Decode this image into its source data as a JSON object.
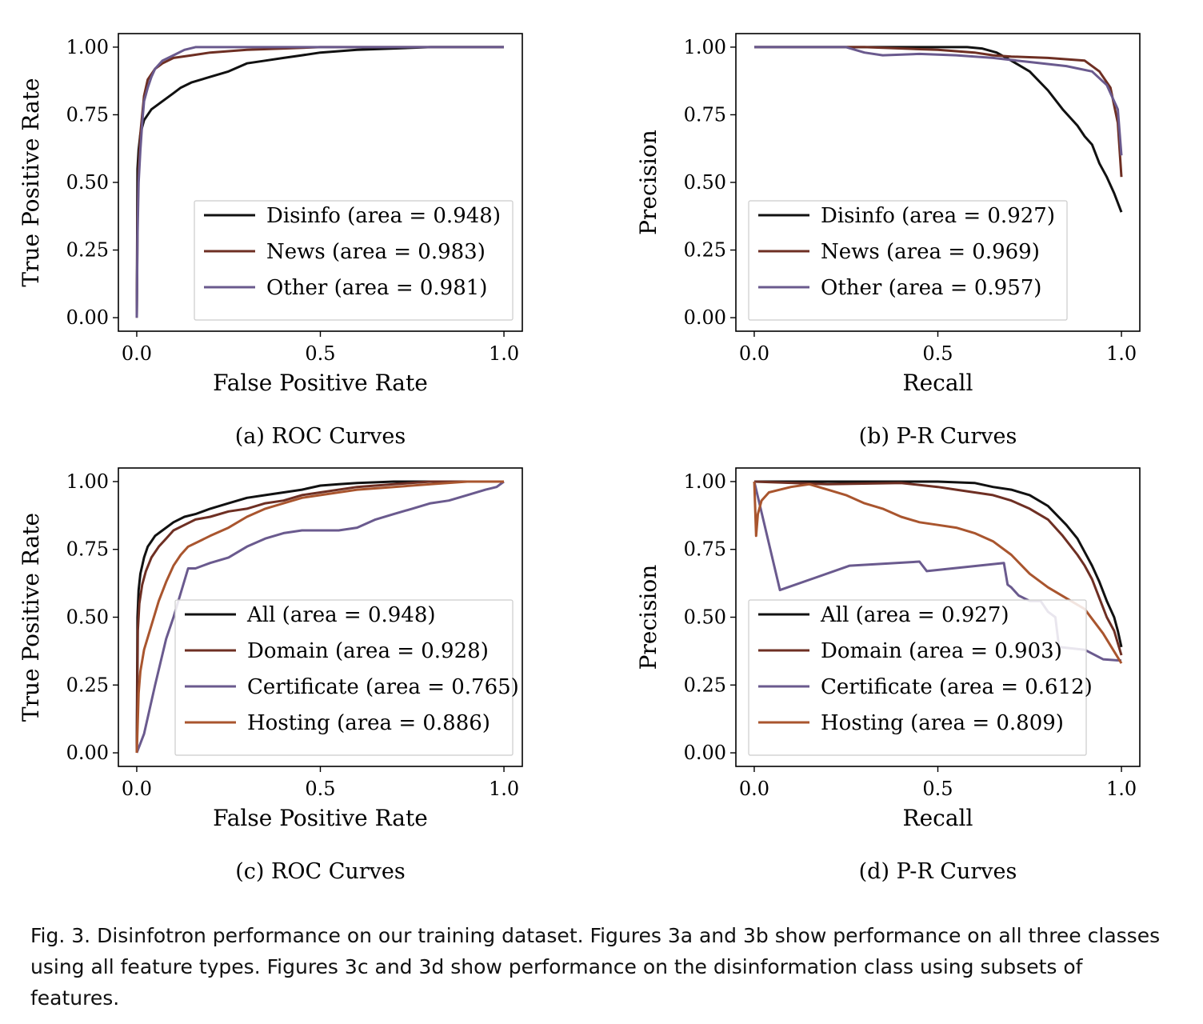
{
  "colors": {
    "black": "#111111",
    "brown": "#6e2f23",
    "purple": "#6a5a8e",
    "orange": "#a9552e"
  },
  "caption": "Fig. 3.  Disinfotron performance on our training dataset. Figures 3a and 3b show performance on all three classes using all feature types. Figures 3c and 3d show performance on the disinformation class using subsets of features.",
  "chart_data": [
    {
      "id": "a",
      "type": "line",
      "subcaption": "(a) ROC Curves",
      "xlabel": "False Positive Rate",
      "ylabel": "True Positive Rate",
      "xlim": [
        -0.05,
        1.05
      ],
      "ylim": [
        -0.05,
        1.05
      ],
      "xticks": [
        "0.0",
        "0.5",
        "1.0"
      ],
      "yticks": [
        "0.00",
        "0.25",
        "0.50",
        "0.75",
        "1.00"
      ],
      "legend_position": "lower-right",
      "series": [
        {
          "name": "Disinfo (area = 0.948)",
          "color": "black",
          "x": [
            0,
            0.002,
            0.005,
            0.01,
            0.02,
            0.04,
            0.06,
            0.08,
            0.1,
            0.12,
            0.15,
            0.2,
            0.25,
            0.3,
            0.35,
            0.4,
            0.45,
            0.5,
            0.55,
            0.6,
            0.7,
            0.8,
            1.0
          ],
          "y": [
            0,
            0.55,
            0.62,
            0.68,
            0.73,
            0.77,
            0.79,
            0.81,
            0.83,
            0.85,
            0.87,
            0.89,
            0.91,
            0.94,
            0.95,
            0.96,
            0.97,
            0.98,
            0.985,
            0.99,
            0.995,
            1.0,
            1.0
          ]
        },
        {
          "name": "News (area = 0.983)",
          "color": "brown",
          "x": [
            0,
            0.002,
            0.005,
            0.01,
            0.015,
            0.02,
            0.03,
            0.05,
            0.07,
            0.1,
            0.15,
            0.2,
            0.3,
            0.4,
            0.5,
            1.0
          ],
          "y": [
            0,
            0.35,
            0.55,
            0.68,
            0.75,
            0.82,
            0.88,
            0.92,
            0.94,
            0.96,
            0.97,
            0.98,
            0.99,
            0.995,
            1.0,
            1.0
          ]
        },
        {
          "name": "Other (area = 0.981)",
          "color": "purple",
          "x": [
            0,
            0.002,
            0.005,
            0.01,
            0.015,
            0.02,
            0.03,
            0.04,
            0.05,
            0.07,
            0.1,
            0.13,
            0.16,
            0.2,
            0.3,
            1.0
          ],
          "y": [
            0,
            0.3,
            0.5,
            0.62,
            0.72,
            0.8,
            0.85,
            0.89,
            0.92,
            0.95,
            0.97,
            0.99,
            1.0,
            1.0,
            1.0,
            1.0
          ]
        }
      ]
    },
    {
      "id": "b",
      "type": "line",
      "subcaption": "(b) P-R Curves",
      "xlabel": "Recall",
      "ylabel": "Precision",
      "xlim": [
        -0.05,
        1.05
      ],
      "ylim": [
        -0.05,
        1.05
      ],
      "xticks": [
        "0.0",
        "0.5",
        "1.0"
      ],
      "yticks": [
        "0.00",
        "0.25",
        "0.50",
        "0.75",
        "1.00"
      ],
      "legend_position": "lower-left",
      "series": [
        {
          "name": "Disinfo (area = 0.927)",
          "color": "black",
          "x": [
            0,
            0.3,
            0.5,
            0.58,
            0.62,
            0.66,
            0.7,
            0.75,
            0.8,
            0.84,
            0.88,
            0.9,
            0.92,
            0.94,
            0.96,
            0.98,
            1.0
          ],
          "y": [
            1.0,
            1.0,
            1.0,
            1.0,
            0.995,
            0.98,
            0.95,
            0.91,
            0.84,
            0.77,
            0.71,
            0.67,
            0.64,
            0.57,
            0.52,
            0.46,
            0.39
          ]
        },
        {
          "name": "News (area = 0.969)",
          "color": "brown",
          "x": [
            0,
            0.3,
            0.5,
            0.6,
            0.65,
            0.7,
            0.8,
            0.9,
            0.94,
            0.97,
            0.99,
            1.0
          ],
          "y": [
            1.0,
            1.0,
            0.99,
            0.98,
            0.97,
            0.965,
            0.96,
            0.95,
            0.91,
            0.85,
            0.72,
            0.52
          ]
        },
        {
          "name": "Other (area = 0.957)",
          "color": "purple",
          "x": [
            0,
            0.25,
            0.3,
            0.35,
            0.45,
            0.55,
            0.65,
            0.75,
            0.85,
            0.92,
            0.96,
            0.99,
            1.0
          ],
          "y": [
            1.0,
            1.0,
            0.98,
            0.97,
            0.975,
            0.97,
            0.96,
            0.945,
            0.93,
            0.91,
            0.86,
            0.77,
            0.6
          ]
        }
      ]
    },
    {
      "id": "c",
      "type": "line",
      "subcaption": "(c) ROC Curves",
      "xlabel": "False Positive Rate",
      "ylabel": "True Positive Rate",
      "xlim": [
        -0.05,
        1.05
      ],
      "ylim": [
        -0.05,
        1.05
      ],
      "xticks": [
        "0.0",
        "0.5",
        "1.0"
      ],
      "yticks": [
        "0.00",
        "0.25",
        "0.50",
        "0.75",
        "1.00"
      ],
      "legend_position": "lower-right",
      "series": [
        {
          "name": "All (area = 0.948)",
          "color": "black",
          "x": [
            0,
            0.002,
            0.005,
            0.01,
            0.02,
            0.03,
            0.04,
            0.05,
            0.07,
            0.1,
            0.13,
            0.16,
            0.2,
            0.25,
            0.3,
            0.35,
            0.4,
            0.45,
            0.5,
            0.55,
            0.6,
            0.7,
            0.8,
            1.0
          ],
          "y": [
            0,
            0.5,
            0.6,
            0.66,
            0.72,
            0.76,
            0.78,
            0.8,
            0.82,
            0.85,
            0.87,
            0.88,
            0.9,
            0.92,
            0.94,
            0.95,
            0.96,
            0.97,
            0.985,
            0.99,
            0.995,
            1.0,
            1.0,
            1.0
          ]
        },
        {
          "name": "Domain (area = 0.928)",
          "color": "brown",
          "x": [
            0,
            0.003,
            0.007,
            0.015,
            0.025,
            0.04,
            0.06,
            0.08,
            0.1,
            0.13,
            0.16,
            0.2,
            0.25,
            0.3,
            0.35,
            0.4,
            0.45,
            0.5,
            0.6,
            0.7,
            0.8,
            1.0
          ],
          "y": [
            0,
            0.45,
            0.55,
            0.62,
            0.67,
            0.72,
            0.76,
            0.79,
            0.82,
            0.84,
            0.86,
            0.87,
            0.89,
            0.9,
            0.92,
            0.93,
            0.95,
            0.96,
            0.98,
            0.99,
            1.0,
            1.0
          ]
        },
        {
          "name": "Certificate (area = 0.765)",
          "color": "purple",
          "x": [
            0,
            0.02,
            0.05,
            0.08,
            0.1,
            0.14,
            0.16,
            0.2,
            0.25,
            0.3,
            0.35,
            0.4,
            0.45,
            0.5,
            0.55,
            0.6,
            0.65,
            0.7,
            0.75,
            0.8,
            0.85,
            0.9,
            0.95,
            0.98,
            1.0
          ],
          "y": [
            0,
            0.07,
            0.25,
            0.42,
            0.5,
            0.68,
            0.68,
            0.7,
            0.72,
            0.76,
            0.79,
            0.81,
            0.82,
            0.82,
            0.82,
            0.83,
            0.86,
            0.88,
            0.9,
            0.92,
            0.93,
            0.95,
            0.97,
            0.98,
            1.0
          ]
        },
        {
          "name": "Hosting (area = 0.886)",
          "color": "orange",
          "x": [
            0,
            0.005,
            0.01,
            0.02,
            0.04,
            0.06,
            0.08,
            0.1,
            0.12,
            0.14,
            0.17,
            0.2,
            0.25,
            0.3,
            0.35,
            0.4,
            0.45,
            0.5,
            0.6,
            0.7,
            0.8,
            0.9,
            1.0
          ],
          "y": [
            0,
            0.22,
            0.3,
            0.38,
            0.47,
            0.56,
            0.63,
            0.69,
            0.73,
            0.76,
            0.78,
            0.8,
            0.83,
            0.87,
            0.9,
            0.92,
            0.94,
            0.95,
            0.97,
            0.98,
            0.99,
            1.0,
            1.0
          ]
        }
      ]
    },
    {
      "id": "d",
      "type": "line",
      "subcaption": "(d) P-R Curves",
      "xlabel": "Recall",
      "ylabel": "Precision",
      "xlim": [
        -0.05,
        1.05
      ],
      "ylim": [
        -0.05,
        1.05
      ],
      "xticks": [
        "0.0",
        "0.5",
        "1.0"
      ],
      "yticks": [
        "0.00",
        "0.25",
        "0.50",
        "0.75",
        "1.00"
      ],
      "legend_position": "lower-left",
      "series": [
        {
          "name": "All (area = 0.927)",
          "color": "black",
          "x": [
            0,
            0.3,
            0.5,
            0.6,
            0.65,
            0.7,
            0.75,
            0.8,
            0.85,
            0.88,
            0.9,
            0.92,
            0.94,
            0.96,
            0.98,
            0.99,
            1.0
          ],
          "y": [
            1.0,
            1.0,
            1.0,
            0.995,
            0.98,
            0.97,
            0.95,
            0.91,
            0.84,
            0.79,
            0.74,
            0.69,
            0.63,
            0.56,
            0.5,
            0.45,
            0.39
          ]
        },
        {
          "name": "Domain (area = 0.903)",
          "color": "brown",
          "x": [
            0,
            0.2,
            0.4,
            0.5,
            0.55,
            0.6,
            0.65,
            0.7,
            0.75,
            0.8,
            0.84,
            0.88,
            0.9,
            0.92,
            0.94,
            0.96,
            0.98,
            1.0
          ],
          "y": [
            1.0,
            0.99,
            0.995,
            0.98,
            0.97,
            0.96,
            0.95,
            0.93,
            0.9,
            0.86,
            0.8,
            0.73,
            0.69,
            0.64,
            0.57,
            0.5,
            0.45,
            0.36
          ]
        },
        {
          "name": "Certificate (area = 0.612)",
          "color": "purple",
          "x": [
            0,
            0.07,
            0.26,
            0.45,
            0.47,
            0.68,
            0.69,
            0.7,
            0.72,
            0.75,
            0.78,
            0.8,
            0.82,
            0.83,
            0.9,
            0.95,
            1.0
          ],
          "y": [
            1.0,
            0.6,
            0.69,
            0.705,
            0.67,
            0.7,
            0.62,
            0.61,
            0.58,
            0.56,
            0.56,
            0.52,
            0.5,
            0.39,
            0.38,
            0.345,
            0.34
          ]
        },
        {
          "name": "Hosting (area = 0.809)",
          "color": "orange",
          "x": [
            0,
            0.005,
            0.01,
            0.02,
            0.04,
            0.07,
            0.1,
            0.15,
            0.2,
            0.25,
            0.3,
            0.35,
            0.4,
            0.45,
            0.5,
            0.55,
            0.6,
            0.65,
            0.7,
            0.75,
            0.8,
            0.85,
            0.9,
            0.95,
            1.0
          ],
          "y": [
            1.0,
            0.8,
            0.88,
            0.93,
            0.96,
            0.97,
            0.98,
            0.99,
            0.97,
            0.95,
            0.92,
            0.9,
            0.87,
            0.85,
            0.84,
            0.83,
            0.81,
            0.78,
            0.73,
            0.66,
            0.61,
            0.57,
            0.53,
            0.44,
            0.33
          ]
        }
      ]
    }
  ]
}
